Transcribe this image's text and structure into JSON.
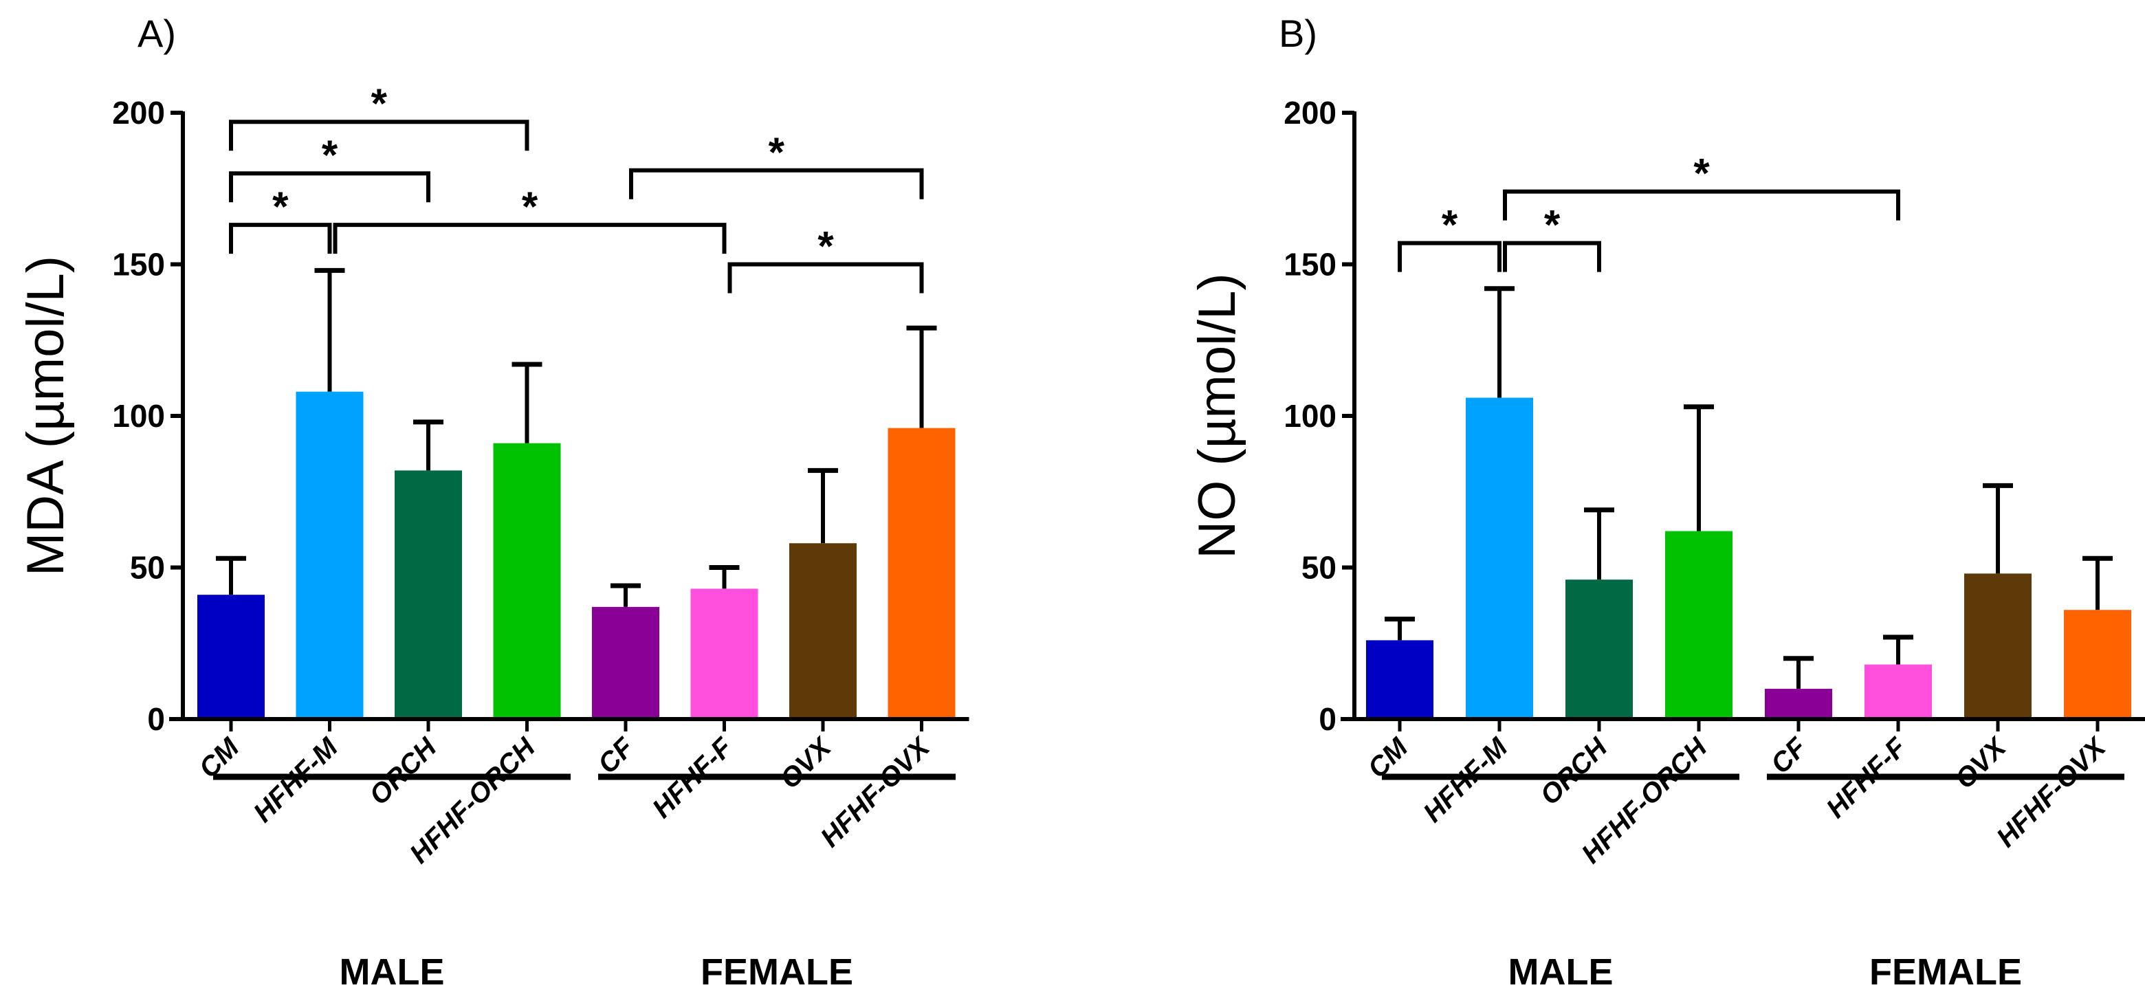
{
  "chart_data": [
    {
      "type": "bar",
      "panel_label": "A)",
      "ylabel": "MDA (µmol/L)",
      "ylim": [
        0,
        200
      ],
      "yticks": [
        0,
        50,
        100,
        150,
        200
      ],
      "categories": [
        "CM",
        "HFHF-M",
        "ORCH",
        "HFHF-ORCH",
        "CF",
        "HFHF-F",
        "OVX",
        "HFHF-OVX"
      ],
      "values": [
        41,
        108,
        82,
        91,
        37,
        43,
        58,
        96
      ],
      "error_upper": [
        53,
        148,
        98,
        117,
        44,
        50,
        82,
        129
      ],
      "colors": [
        "#0000c4",
        "#00a2ff",
        "#006a45",
        "#00c200",
        "#8a0096",
        "#ff4fdc",
        "#5e3a08",
        "#ff6300"
      ],
      "groups": [
        {
          "label": "MALE",
          "range": [
            0,
            3
          ]
        },
        {
          "label": "FEMALE",
          "range": [
            4,
            7
          ]
        }
      ],
      "significance": [
        {
          "from": 0,
          "to": 3,
          "level": 197,
          "mark": "*"
        },
        {
          "from": 0,
          "to": 2,
          "level": 180,
          "mark": "*"
        },
        {
          "from": 0,
          "to": 1,
          "level": 163,
          "mark": "*"
        },
        {
          "from": 1,
          "to": 5,
          "level": 163,
          "mark": "*"
        },
        {
          "from": 4,
          "to": 7,
          "level": 181,
          "mark": "*"
        },
        {
          "from": 5,
          "to": 7,
          "level": 150,
          "mark": "*"
        }
      ]
    },
    {
      "type": "bar",
      "panel_label": "B)",
      "ylabel": "NO (µmol/L)",
      "ylim": [
        0,
        200
      ],
      "yticks": [
        0,
        50,
        100,
        150,
        200
      ],
      "categories": [
        "CM",
        "HFHF-M",
        "ORCH",
        "HFHF-ORCH",
        "CF",
        "HFHF-F",
        "OVX",
        "HFHF-OVX"
      ],
      "values": [
        26,
        106,
        46,
        62,
        10,
        18,
        48,
        36
      ],
      "error_upper": [
        33,
        142,
        69,
        103,
        20,
        27,
        77,
        53
      ],
      "colors": [
        "#0000c4",
        "#00a2ff",
        "#006a45",
        "#00c200",
        "#8a0096",
        "#ff4fdc",
        "#5e3a08",
        "#ff6300"
      ],
      "groups": [
        {
          "label": "MALE",
          "range": [
            0,
            3
          ]
        },
        {
          "label": "FEMALE",
          "range": [
            4,
            7
          ]
        }
      ],
      "significance": [
        {
          "from": 0,
          "to": 1,
          "level": 157,
          "mark": "*"
        },
        {
          "from": 1,
          "to": 2,
          "level": 157,
          "mark": "*"
        },
        {
          "from": 1,
          "to": 5,
          "level": 174,
          "mark": "*"
        }
      ]
    }
  ]
}
